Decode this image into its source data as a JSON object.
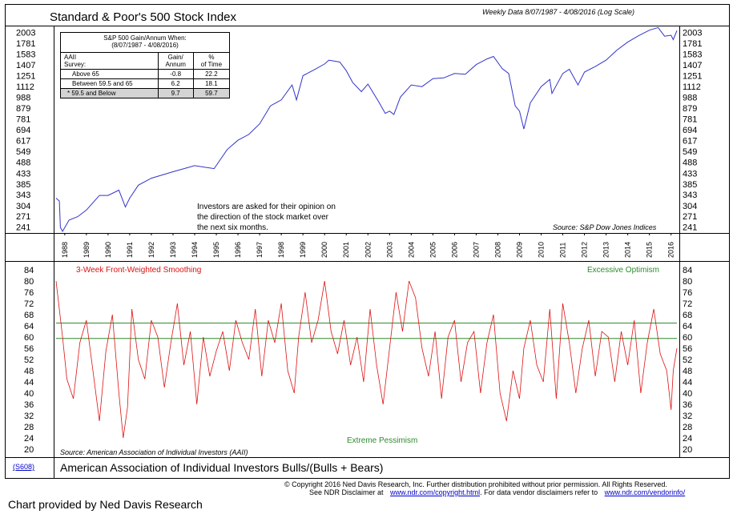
{
  "chart_data": [
    {
      "type": "line",
      "title": "Standard & Poor's 500 Stock Index",
      "subtitle": "Weekly Data 8/07/1987 - 4/08/2016 (Log Scale)",
      "scale": "log",
      "y_ticks": [
        2003,
        1781,
        1583,
        1407,
        1251,
        1112,
        988,
        879,
        781,
        694,
        617,
        549,
        488,
        433,
        385,
        343,
        304,
        271,
        241
      ],
      "ylim": [
        228,
        2080
      ],
      "x_years": [
        1988,
        1989,
        1990,
        1991,
        1992,
        1993,
        1994,
        1995,
        1996,
        1997,
        1998,
        1999,
        2000,
        2001,
        2002,
        2003,
        2004,
        2005,
        2006,
        2007,
        2008,
        2009,
        2010,
        2011,
        2012,
        2013,
        2014,
        2015,
        2016
      ],
      "xlim": [
        1987.6,
        2016.27
      ],
      "series": [
        {
          "color": "#3333cc",
          "x": [
            1987.6,
            1987.75,
            1987.8,
            1987.9,
            1988.2,
            1988.6,
            1989.0,
            1989.6,
            1990.0,
            1990.5,
            1990.8,
            1991.0,
            1991.4,
            1992.0,
            1993.0,
            1994.0,
            1994.9,
            1995.5,
            1996.0,
            1996.5,
            1997.0,
            1997.5,
            1998.0,
            1998.5,
            1998.7,
            1999.0,
            1999.5,
            2000.0,
            2000.2,
            2000.7,
            2001.0,
            2001.3,
            2001.7,
            2002.0,
            2002.5,
            2002.8,
            2003.0,
            2003.2,
            2003.5,
            2004.0,
            2004.5,
            2005.0,
            2005.5,
            2006.0,
            2006.5,
            2007.0,
            2007.5,
            2007.8,
            2008.2,
            2008.5,
            2008.8,
            2009.0,
            2009.2,
            2009.5,
            2010.0,
            2010.4,
            2010.5,
            2011.0,
            2011.3,
            2011.7,
            2012.0,
            2012.5,
            2013.0,
            2013.5,
            2014.0,
            2014.5,
            2015.0,
            2015.4,
            2015.7,
            2016.0,
            2016.1,
            2016.27
          ],
          "y": [
            330,
            320,
            240,
            230,
            260,
            270,
            290,
            340,
            340,
            360,
            300,
            330,
            380,
            410,
            440,
            470,
            455,
            560,
            620,
            660,
            740,
            900,
            960,
            1130,
            960,
            1250,
            1330,
            1420,
            1480,
            1450,
            1320,
            1160,
            1050,
            1140,
            940,
            830,
            850,
            820,
            990,
            1130,
            1110,
            1210,
            1220,
            1280,
            1270,
            1410,
            1500,
            1540,
            1350,
            1280,
            900,
            850,
            700,
            930,
            1110,
            1200,
            1030,
            1280,
            1340,
            1130,
            1300,
            1380,
            1480,
            1650,
            1800,
            1930,
            2050,
            2110,
            1920,
            1940,
            1850,
            2040
          ]
        }
      ],
      "source": "Source: S&P Dow Jones Indices",
      "table": {
        "title_line1": "S&P  500 Gain/Annum  When:",
        "title_line2": "(8/07/1987 - 4/08/2016)",
        "header_col1": [
          "AAII",
          "Survey:"
        ],
        "header_col2": [
          "Gain/",
          "Annum"
        ],
        "header_col3": [
          "%",
          "of Time"
        ],
        "rows": [
          {
            "label": "Above  65",
            "gain": "-0.8",
            "pct": "22.2"
          },
          {
            "label": "Between  59.5  and  65",
            "gain": "6.2",
            "pct": "18.1"
          },
          {
            "label": "*  59.5  and  Below",
            "gain": "9.7",
            "pct": "59.7"
          }
        ]
      },
      "annotation": [
        "Investors are asked for their opinion on",
        "the direction of the stock market over",
        "the next six months."
      ]
    },
    {
      "type": "line",
      "title": "American Association of Individual Investors Bulls/(Bulls + Bears)",
      "series_label": "3-Week Front-Weighted Smoothing",
      "y_ticks": [
        84,
        80,
        76,
        72,
        68,
        64,
        60,
        56,
        52,
        48,
        44,
        40,
        36,
        32,
        28,
        24,
        20
      ],
      "ylim": [
        20,
        84
      ],
      "xlim": [
        1987.6,
        2016.27
      ],
      "reference_lines": [
        {
          "value": 65,
          "label": "Excessive Optimism",
          "color": "#2e8b2e"
        },
        {
          "value": 59.5,
          "color": "#2e8b2e"
        }
      ],
      "bottom_label": "Extreme Pessimism",
      "series": [
        {
          "color": "#dd1111",
          "x": [
            1987.6,
            1987.9,
            1988.1,
            1988.4,
            1988.7,
            1989.0,
            1989.3,
            1989.6,
            1989.9,
            1990.2,
            1990.5,
            1990.7,
            1990.9,
            1991.1,
            1991.4,
            1991.7,
            1992.0,
            1992.3,
            1992.6,
            1992.9,
            1993.2,
            1993.5,
            1993.8,
            1994.1,
            1994.4,
            1994.7,
            1995.0,
            1995.3,
            1995.6,
            1995.9,
            1996.2,
            1996.5,
            1996.8,
            1997.1,
            1997.4,
            1997.7,
            1998.0,
            1998.3,
            1998.6,
            1998.8,
            1999.1,
            1999.4,
            1999.7,
            2000.0,
            2000.3,
            2000.6,
            2000.9,
            2001.2,
            2001.5,
            2001.8,
            2002.1,
            2002.4,
            2002.7,
            2003.0,
            2003.3,
            2003.6,
            2003.9,
            2004.2,
            2004.5,
            2004.8,
            2005.1,
            2005.4,
            2005.7,
            2006.0,
            2006.3,
            2006.6,
            2006.9,
            2007.2,
            2007.5,
            2007.8,
            2008.1,
            2008.4,
            2008.7,
            2009.0,
            2009.2,
            2009.5,
            2009.8,
            2010.1,
            2010.4,
            2010.7,
            2011.0,
            2011.3,
            2011.6,
            2011.9,
            2012.2,
            2012.5,
            2012.8,
            2013.1,
            2013.4,
            2013.7,
            2014.0,
            2014.3,
            2014.6,
            2014.9,
            2015.2,
            2015.5,
            2015.8,
            2016.0,
            2016.1,
            2016.27
          ],
          "y": [
            80,
            60,
            45,
            38,
            58,
            66,
            48,
            30,
            55,
            68,
            40,
            24,
            35,
            70,
            52,
            45,
            66,
            60,
            42,
            58,
            72,
            50,
            62,
            36,
            60,
            46,
            55,
            62,
            48,
            66,
            58,
            52,
            70,
            46,
            66,
            58,
            72,
            48,
            40,
            60,
            76,
            58,
            66,
            80,
            62,
            54,
            66,
            50,
            60,
            44,
            70,
            50,
            36,
            56,
            76,
            62,
            80,
            74,
            56,
            46,
            62,
            38,
            60,
            66,
            44,
            58,
            62,
            40,
            58,
            68,
            40,
            30,
            48,
            38,
            56,
            66,
            50,
            44,
            70,
            38,
            72,
            58,
            40,
            56,
            66,
            46,
            62,
            60,
            44,
            62,
            50,
            66,
            40,
            58,
            70,
            54,
            48,
            34,
            48,
            56
          ]
        }
      ],
      "source": "Source: American Association of Individual Investors (AAII)"
    }
  ],
  "chart_code": "(S608)",
  "footer": {
    "copyright": "© Copyright 2016 Ned Davis Research, Inc.  Further distribution prohibited without prior permission.  All Rights Reserved.",
    "disclaimer_prefix": "See NDR Disclaimer at",
    "link1": "www.ndr.com/copyright.html",
    "disclaimer_middle": ".  For data vendor disclaimers refer to",
    "link2": "www.ndr.com/vendorinfo/",
    "credit": "Chart provided by Ned Davis Research"
  },
  "colors": {
    "price": "#3333cc",
    "sentiment": "#dd1111",
    "reference": "#2e8b2e"
  }
}
